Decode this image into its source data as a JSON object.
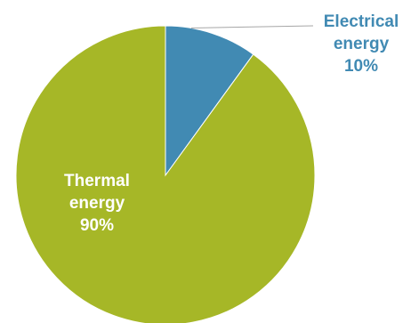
{
  "chart_data": {
    "type": "pie",
    "slices": [
      {
        "category": "Electrical energy",
        "label_line1": "Electrical",
        "label_line2": "energy",
        "percent_label": "10%",
        "value": 10,
        "color": "#418ab3",
        "label_color": "#418ab3"
      },
      {
        "category": "Thermal energy",
        "label_line1": "Thermal",
        "label_line2": "energy",
        "percent_label": "90%",
        "value": 90,
        "color": "#a6b727",
        "label_color": "#ffffff"
      }
    ],
    "start_angle_deg": 0,
    "direction": "clockwise",
    "legend": "none",
    "leader_line_color": "#a6a6a6"
  }
}
